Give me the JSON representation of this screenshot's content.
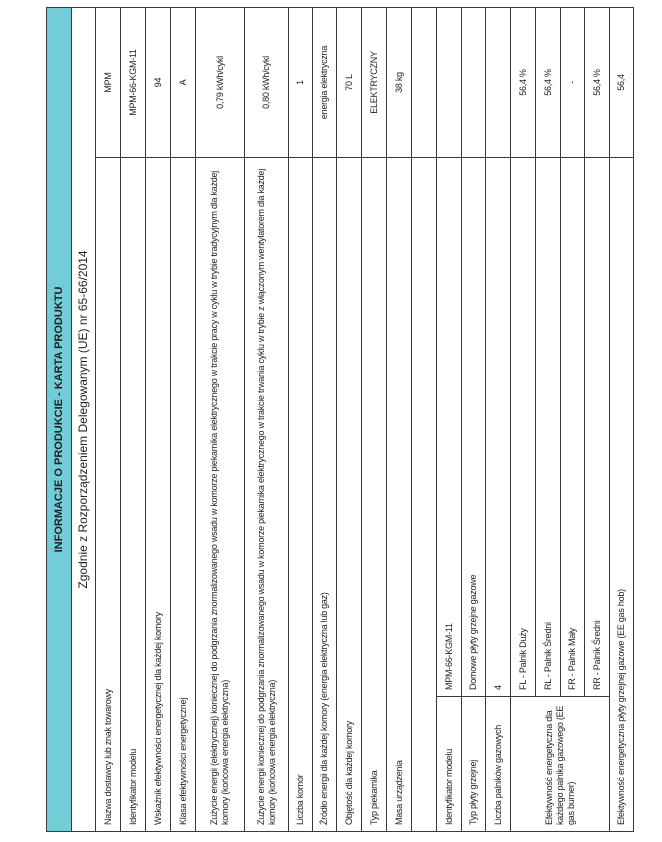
{
  "header": {
    "title": "INFORMACJE O PRODUKCIE - KARTA PRODUKTU",
    "subtitle": "Zgodnie z Rozporządzeniem Delegowanym (UE) nr 65-66/2014"
  },
  "oven_rows": [
    {
      "label": "Nazwa dostawcy lub znak towarowy",
      "value": "MPM"
    },
    {
      "label": "Identyfikator modelu",
      "value": "MPM-66-KGM-11"
    },
    {
      "label": "Wskaźnik efektywności energetycznej dla każdej komory",
      "value": "94"
    },
    {
      "label": "Klasa efektywności energetycznej",
      "value": "A"
    },
    {
      "label": "Zużycie energii (elektrycznej) koniecznej do podgrzania znormalizowanego wsadu w komorze piekarnika elektrycznego w trakcie pracy w cyklu w trybie tradycyjnym dla każdej komory (końcowa energia elektryczna)",
      "value": "0,79 kWh/cykl"
    },
    {
      "label": "Zużycie energii koniecznej do podgrzania znormalizowanego wsadu w komorze piekarnika elektrycznego w trakcie trwania cyklu w trybie z włączonym wentylatorem dla każdej komory (końcowa energia elektryczna)",
      "value": "0,80 kWh/cykl"
    },
    {
      "label": "Liczba komór",
      "value": "1"
    },
    {
      "label": "Źródło energii dla każdej komory (energia elektryczna lub gaz)",
      "value": "energia elektryczna"
    },
    {
      "label": "Objętość dla każdej komory",
      "value": "70 L"
    },
    {
      "label": "Typ piekarnika",
      "value": "ELEKTRYCZNY"
    },
    {
      "label": "Masa urządzenia",
      "value": "38 kg"
    }
  ],
  "hob": {
    "model_label": "Identyfikator modelu",
    "model_value": "MPM-66-KGM-11",
    "type_label": "Typ płyty grzejnej",
    "type_value": "Domowe płyty grzejne gazowe",
    "burners_label": "Liczba palników gazowych",
    "burners_value": "4",
    "ee_burner_label": "Efektywność energetyczna dla każdego palnika gazowego (EE gas burner)",
    "burners": [
      {
        "name": "FL - Palnik Duży",
        "value": "56,4 %"
      },
      {
        "name": "RL - Palnik Średni",
        "value": "56,4 %"
      },
      {
        "name": "FR - Palnik Mały",
        "value": "-"
      },
      {
        "name": "RR - Palnik Średni",
        "value": "56,4 %"
      }
    ],
    "ee_hob_label": "Efektywność energetyczna płyty grzejnej gazowe (EE gas hob)",
    "ee_hob_value": "56,4"
  },
  "colors": {
    "header_bg": "#72cdd8",
    "border": "#3a3a3a"
  }
}
